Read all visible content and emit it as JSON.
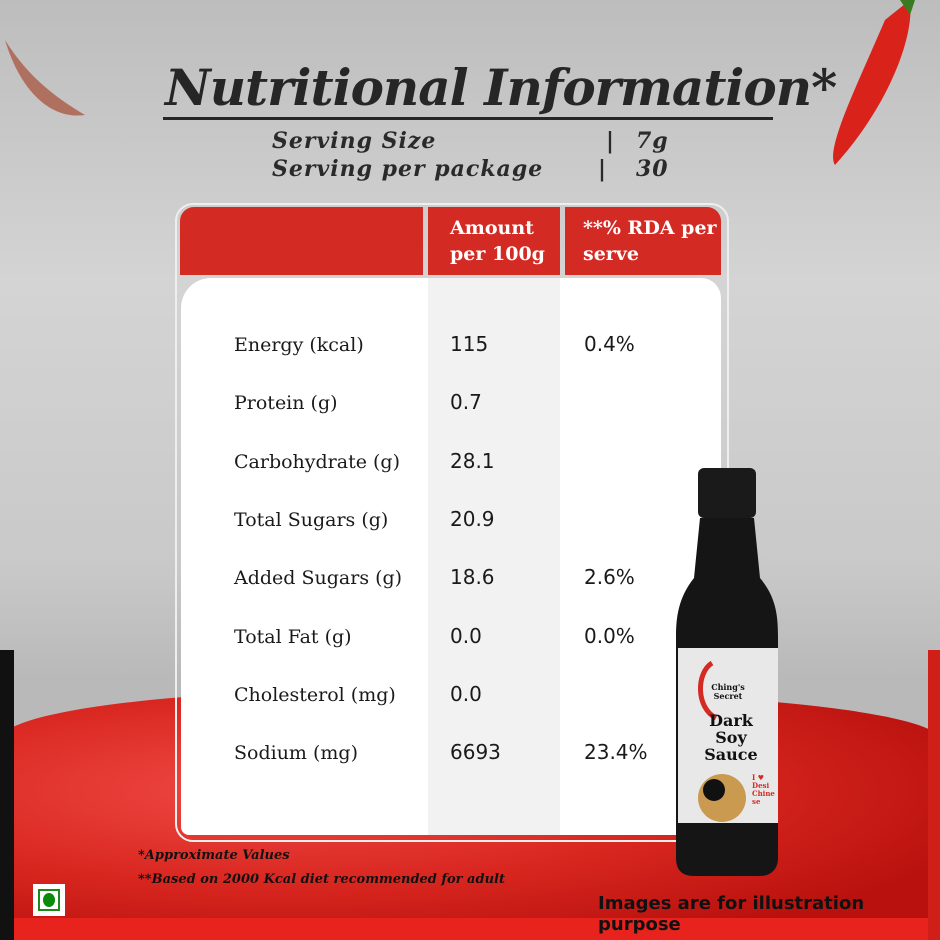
{
  "title": "Nutritional Information*",
  "serving": [
    {
      "label": "Serving Size",
      "sep": "|",
      "value": "7g"
    },
    {
      "label": "Serving per package",
      "sep": "|",
      "value": "30"
    }
  ],
  "table": {
    "headers": {
      "amount": "Amount per 100g",
      "rda": "**% RDA per serve"
    },
    "rows": [
      {
        "nutrient": "Energy (kcal)",
        "amount": "115",
        "rda": "0.4%"
      },
      {
        "nutrient": "Protein (g)",
        "amount": "0.7",
        "rda": ""
      },
      {
        "nutrient": "Carbohydrate (g)",
        "amount": "28.1",
        "rda": ""
      },
      {
        "nutrient": "Total Sugars (g)",
        "amount": "20.9",
        "rda": ""
      },
      {
        "nutrient": "Added Sugars (g)",
        "amount": "18.6",
        "rda": "2.6%"
      },
      {
        "nutrient": "Total Fat (g)",
        "amount": "0.0",
        "rda": "0.0%"
      },
      {
        "nutrient": "Cholesterol (mg)",
        "amount": "0.0",
        "rda": ""
      },
      {
        "nutrient": "Sodium (mg)",
        "amount": "6693",
        "rda": "23.4%"
      }
    ]
  },
  "notes": [
    "*Approximate Values",
    "**Based on 2000 Kcal diet recommended for adult"
  ],
  "disclaimer": "Images are for illustration purpose",
  "product": {
    "brand": "Ching's Secret",
    "name": "Dark Soy Sauce",
    "tagline": "I ♥ Desi Chinese"
  },
  "colors": {
    "header_red": "#d42a24",
    "veg_green": "#0a8a0a"
  }
}
